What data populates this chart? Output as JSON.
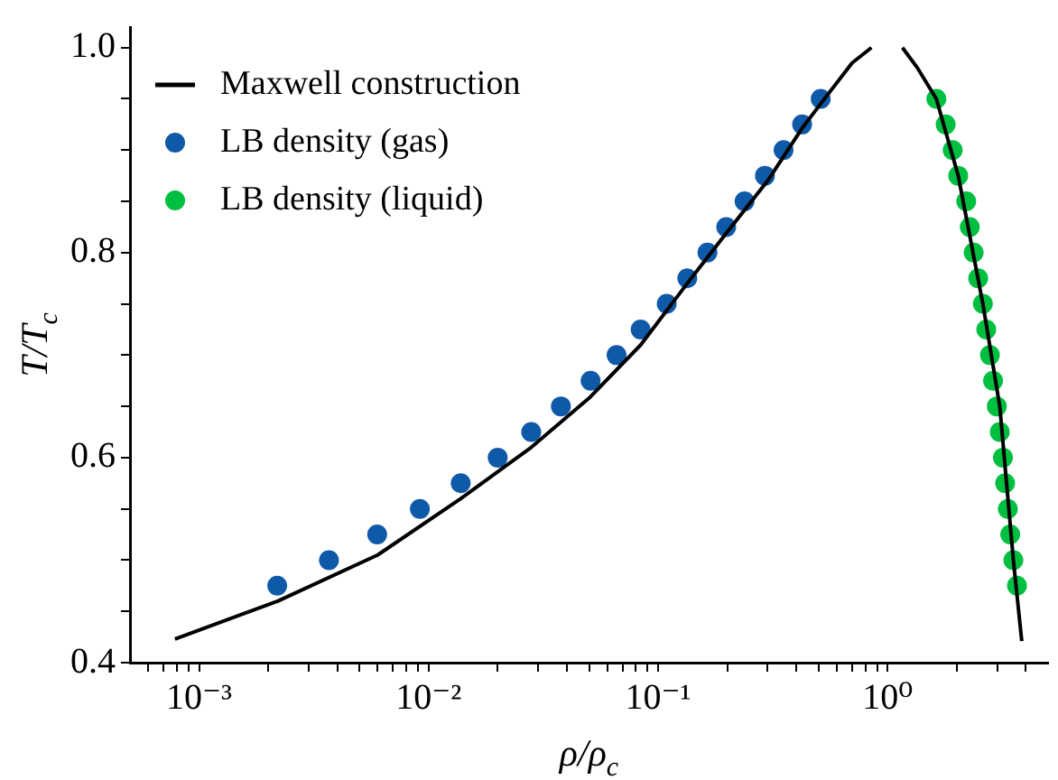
{
  "chart_data": {
    "type": "scatter",
    "xlabel": "ρ/ρ$_{c}$",
    "ylabel": "T/T$_{c}$",
    "log": "x",
    "grid": false,
    "legend": "top left",
    "xlim": [
      0.0005,
      5
    ],
    "ylim": [
      0.4,
      1.02
    ],
    "xticks": [
      {
        "value": 0.0006,
        "label": null
      },
      {
        "value": 0.0007,
        "label": null
      },
      {
        "value": 0.0008,
        "label": null
      },
      {
        "value": 0.0009,
        "label": null
      },
      {
        "value": 0.001,
        "label": "10⁻³"
      },
      {
        "value": 0.002,
        "label": null
      },
      {
        "value": 0.003,
        "label": null
      },
      {
        "value": 0.004,
        "label": null
      },
      {
        "value": 0.005,
        "label": null
      },
      {
        "value": 0.006,
        "label": null
      },
      {
        "value": 0.007,
        "label": null
      },
      {
        "value": 0.008,
        "label": null
      },
      {
        "value": 0.009,
        "label": null
      },
      {
        "value": 0.01,
        "label": "10⁻²"
      },
      {
        "value": 0.02,
        "label": null
      },
      {
        "value": 0.03,
        "label": null
      },
      {
        "value": 0.04,
        "label": null
      },
      {
        "value": 0.05,
        "label": null
      },
      {
        "value": 0.06,
        "label": null
      },
      {
        "value": 0.07,
        "label": null
      },
      {
        "value": 0.08,
        "label": null
      },
      {
        "value": 0.09,
        "label": null
      },
      {
        "value": 0.1,
        "label": "10⁻¹"
      },
      {
        "value": 0.2,
        "label": null
      },
      {
        "value": 0.3,
        "label": null
      },
      {
        "value": 0.4,
        "label": null
      },
      {
        "value": 0.5,
        "label": null
      },
      {
        "value": 0.6,
        "label": null
      },
      {
        "value": 0.7,
        "label": null
      },
      {
        "value": 0.8,
        "label": null
      },
      {
        "value": 0.9,
        "label": null
      },
      {
        "value": 1,
        "label": "10⁰"
      },
      {
        "value": 2,
        "label": null
      },
      {
        "value": 3,
        "label": null
      },
      {
        "value": 4,
        "label": null
      }
    ],
    "yticks": [
      0.4,
      {
        "value": 0.45,
        "label": null
      },
      {
        "value": 0.5,
        "label": null
      },
      {
        "value": 0.55,
        "label": null
      },
      0.6,
      {
        "value": 0.65,
        "label": null
      },
      {
        "value": 0.7,
        "label": null
      },
      {
        "value": 0.75,
        "label": null
      },
      0.8,
      {
        "value": 0.85,
        "label": null
      },
      {
        "value": 0.9,
        "label": null
      },
      {
        "value": 0.95,
        "label": null
      },
      {
        "value": 1,
        "label": "1.0"
      }
    ],
    "series": [
      {
        "name": "Maxwell construction",
        "type": "line",
        "marker": "none",
        "line_style": "solid",
        "color": "#000000",
        "x": [
          0.000785,
          0.0022,
          0.006,
          0.0138,
          0.028,
          0.05,
          0.084,
          0.134,
          0.2,
          0.3,
          0.42,
          0.51,
          0.7,
          0.85,
          1,
          1.16,
          1.35,
          1.63,
          2.03,
          2.6,
          3.08,
          3.53,
          3.84
        ],
        "values": [
          0.423,
          0.46,
          0.505,
          0.56,
          0.61,
          0.658,
          0.71,
          0.77,
          0.82,
          0.87,
          0.92,
          0.945,
          0.985,
          1.0,
          null,
          1.0,
          0.98,
          0.95,
          0.875,
          0.75,
          0.65,
          0.5,
          0.421
        ]
      },
      {
        "name": "LB density (gas)",
        "type": "scatter",
        "marker": "circle",
        "color": "#0f5aa8",
        "x": [
          0.00219,
          0.00368,
          0.00597,
          0.00916,
          0.0138,
          0.02,
          0.028,
          0.0377,
          0.0508,
          0.0659,
          0.0839,
          0.109,
          0.134,
          0.164,
          0.198,
          0.238,
          0.292,
          0.352,
          0.424,
          0.511
        ],
        "values": [
          0.475,
          0.5,
          0.525,
          0.55,
          0.575,
          0.6,
          0.625,
          0.65,
          0.675,
          0.7,
          0.725,
          0.75,
          0.775,
          0.8,
          0.825,
          0.85,
          0.875,
          0.9,
          0.925,
          0.95
        ]
      },
      {
        "name": "LB density (liquid)",
        "type": "scatter",
        "marker": "circle",
        "color": "#00bf40",
        "x": [
          1.63,
          1.79,
          1.92,
          2.03,
          2.2,
          2.28,
          2.37,
          2.48,
          2.6,
          2.69,
          2.79,
          2.88,
          2.99,
          3.08,
          3.18,
          3.25,
          3.34,
          3.42,
          3.53,
          3.66
        ],
        "values": [
          0.95,
          0.925,
          0.9,
          0.875,
          0.85,
          0.825,
          0.8,
          0.775,
          0.75,
          0.725,
          0.7,
          0.675,
          0.65,
          0.625,
          0.6,
          0.575,
          0.55,
          0.525,
          0.5,
          0.475
        ]
      }
    ]
  }
}
